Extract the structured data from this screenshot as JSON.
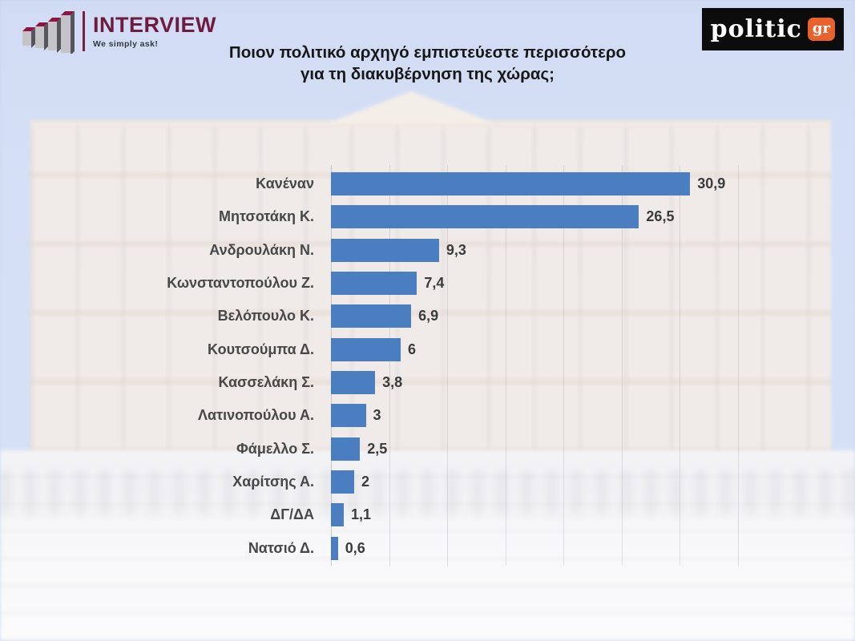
{
  "header": {
    "interview_logo": {
      "name": "INTERVIEW",
      "tagline": "We simply ask!",
      "icon": "bar-chart-3d-icon"
    },
    "politic_logo": {
      "name": "politic",
      "suffix": "gr"
    },
    "title_line1": "Ποιον πολιτικό αρχηγό εμπιστεύεστε περισσότερο",
    "title_line2": "για τη διακυβέρνηση της χώρας;"
  },
  "colors": {
    "bar": "#4a7ec0",
    "interview_maroon": "#6d1c3f",
    "interview_icon_top": "#8c1541",
    "politic_orange": "#e8622d",
    "title_text": "#171717",
    "label_text": "#474747"
  },
  "chart_data": {
    "type": "bar",
    "orientation": "horizontal",
    "title": "Ποιον πολιτικό αρχηγό εμπιστεύεστε περισσότερο για τη διακυβέρνηση της χώρας;",
    "categories": [
      "Κανέναν",
      "Μητσοτάκη Κ.",
      "Ανδρουλάκη Ν.",
      "Κωνσταντοπούλου Ζ.",
      "Βελόπουλο Κ.",
      "Κουτσούμπα Δ.",
      "Κασσελάκη Σ.",
      "Λατινοπούλου Α.",
      "Φάμελλο Σ.",
      "Χαρίτσης Α.",
      "ΔΓ/ΔΑ",
      "Νατσιό Δ."
    ],
    "values": [
      30.9,
      26.5,
      9.3,
      7.4,
      6.9,
      6,
      3.8,
      3,
      2.5,
      2,
      1.1,
      0.6
    ],
    "value_labels": [
      "30,9",
      "26,5",
      "9,3",
      "7,4",
      "6,9",
      "6",
      "3,8",
      "3",
      "2,5",
      "2",
      "1,1",
      "0,6"
    ],
    "xlabel": "",
    "ylabel": "",
    "xlim": [
      0,
      35.5
    ],
    "gridline_step": 5,
    "grid": true,
    "legend": false,
    "bar_color": "#4a7ec0",
    "value_decimal_separator": ","
  }
}
